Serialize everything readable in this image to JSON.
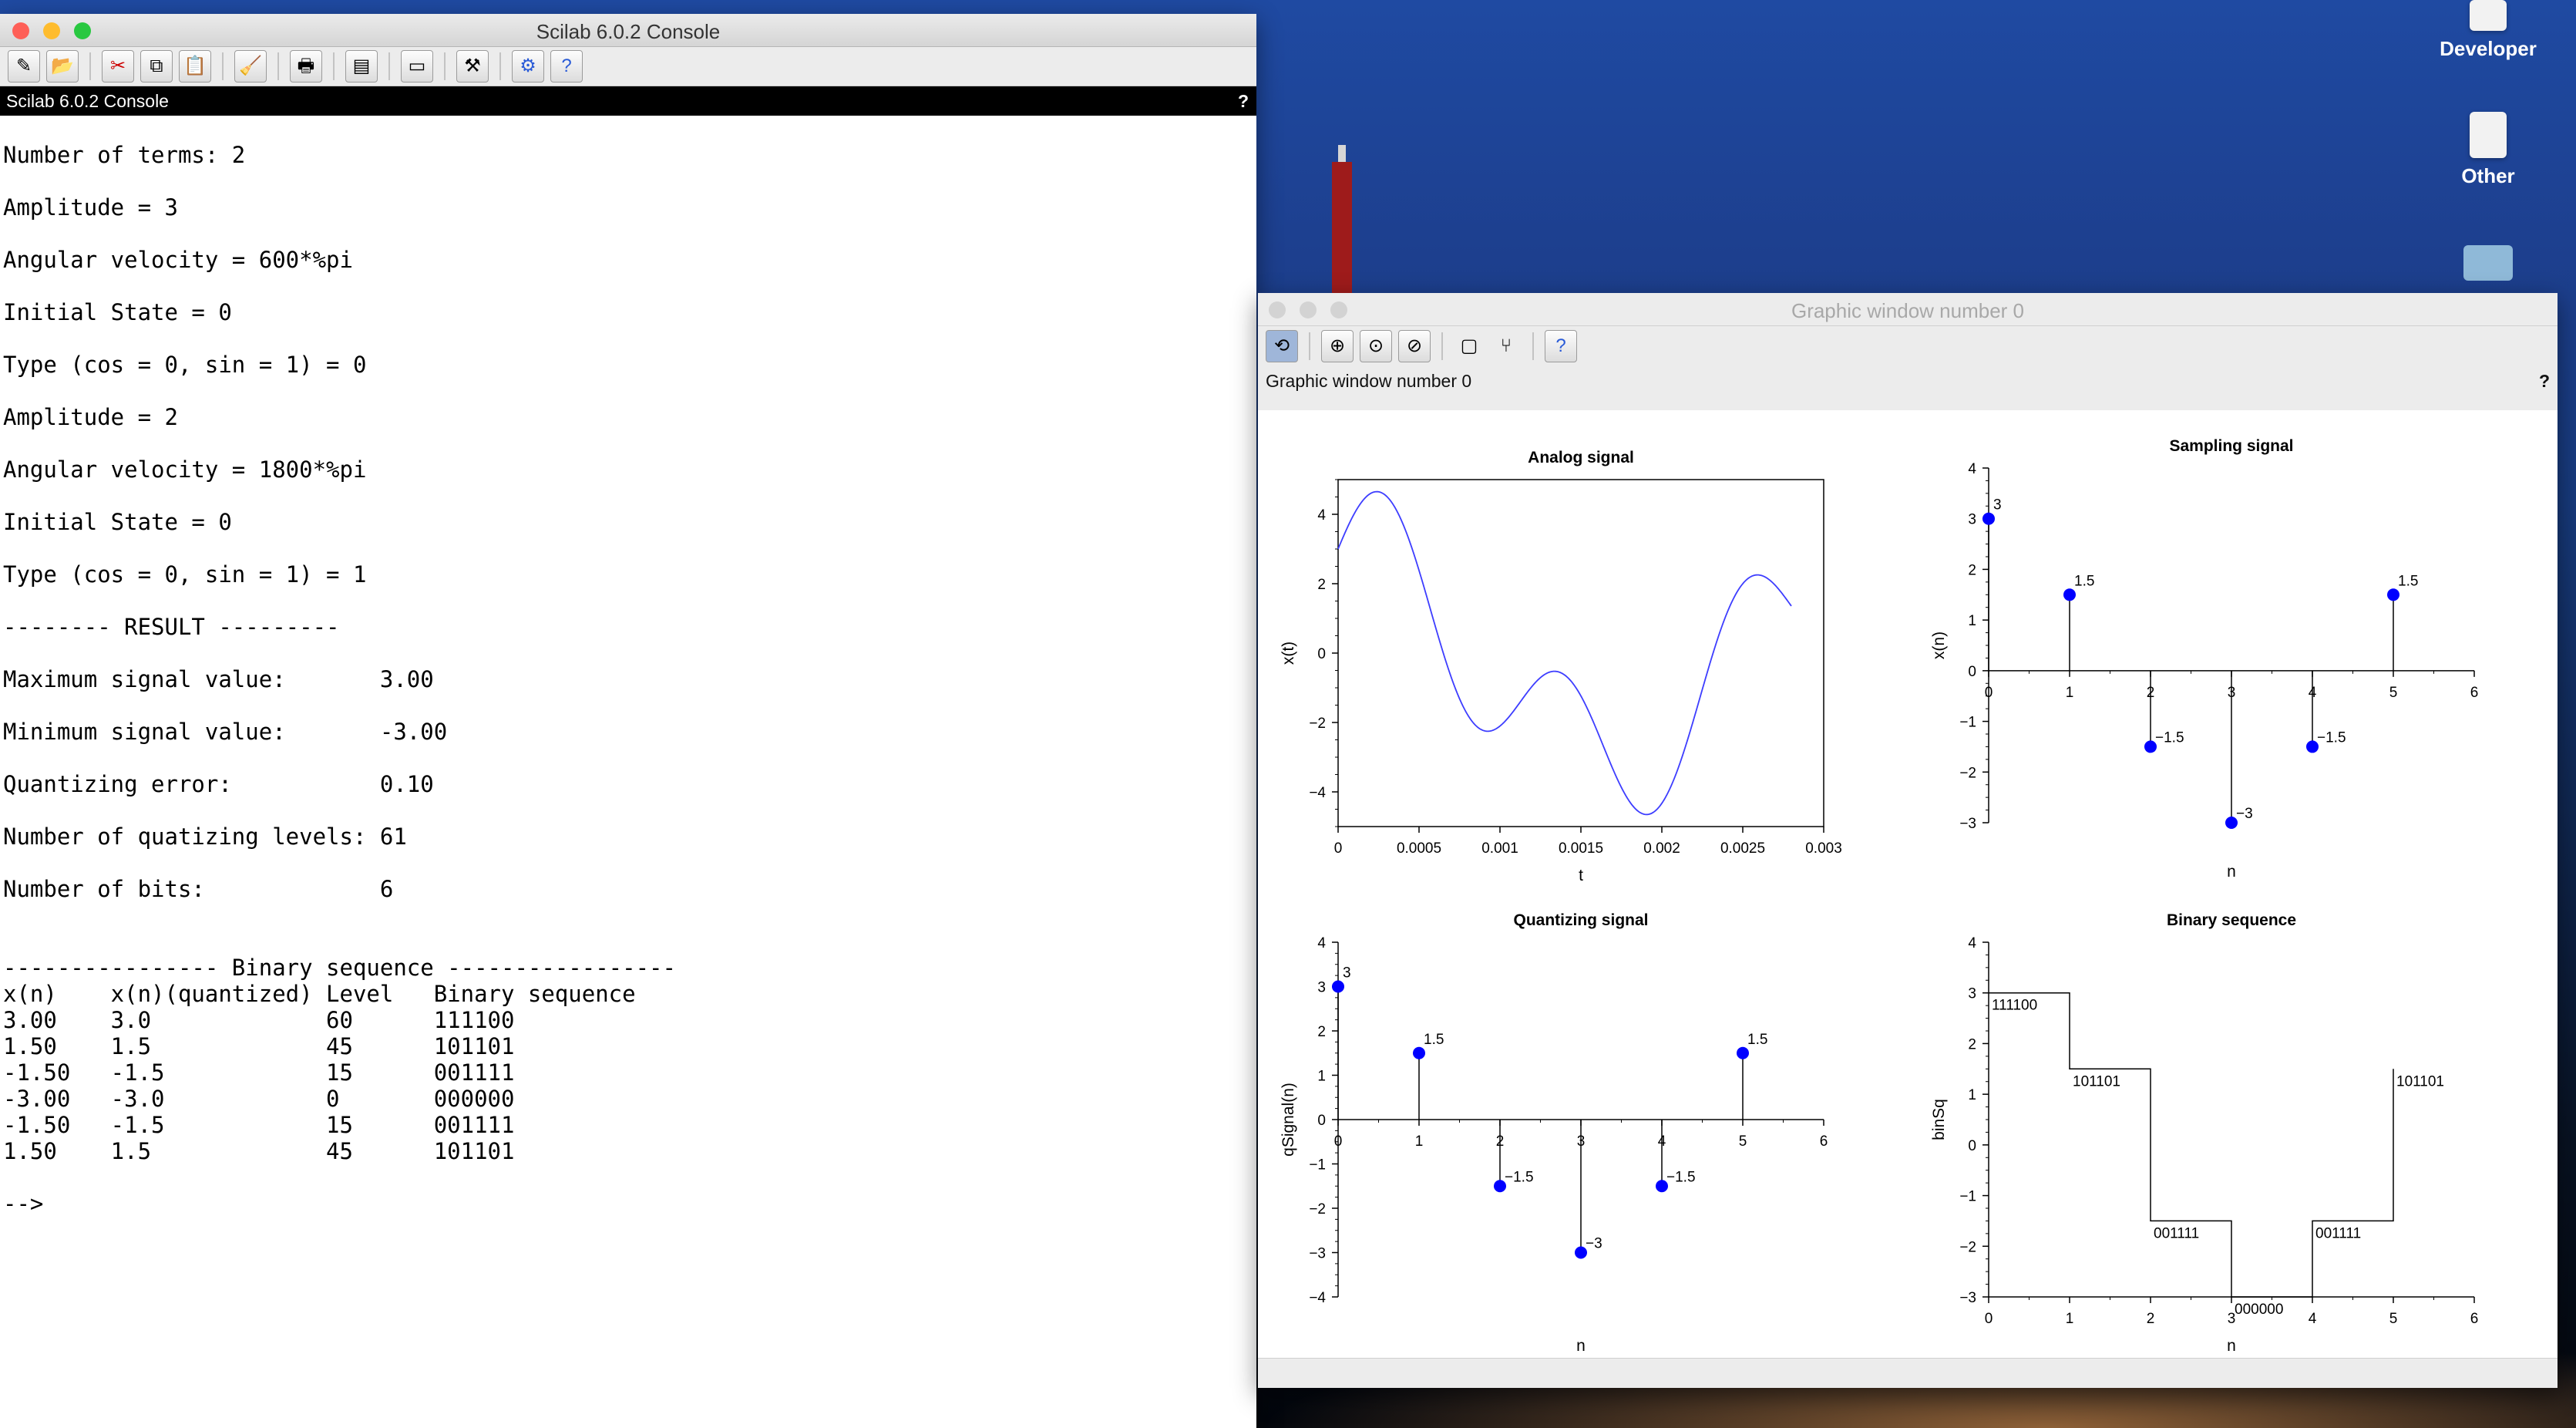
{
  "desktop": {
    "icons": [
      {
        "label": "Developer"
      },
      {
        "label": "Other"
      }
    ]
  },
  "console": {
    "window_title": "Scilab 6.0.2 Console",
    "panel_title": "Scilab 6.0.2 Console",
    "help_mark": "?",
    "lines": [
      "",
      "Number of terms: 2",
      "",
      "Amplitude = 3",
      "",
      "Angular velocity = 600*%pi",
      "",
      "Initial State = 0",
      "",
      "Type (cos = 0, sin = 1) = 0",
      "",
      "Amplitude = 2",
      "",
      "Angular velocity = 1800*%pi",
      "",
      "Initial State = 0",
      "",
      "Type (cos = 0, sin = 1) = 1",
      "",
      "-------- RESULT ---------",
      "",
      "Maximum signal value:       3.00",
      "",
      "Minimum signal value:       -3.00",
      "",
      "Quantizing error:           0.10",
      "",
      "Number of quatizing levels: 61",
      "",
      "Number of bits:             6",
      "",
      "",
      "---------------- Binary sequence -----------------",
      "x(n)    x(n)(quantized) Level   Binary sequence",
      "3.00    3.0             60      111100",
      "1.50    1.5             45      101101",
      "-1.50   -1.5            15      001111",
      "-3.00   -3.0            0       000000",
      "-1.50   -1.5            15      001111",
      "1.50    1.5             45      101101",
      "",
      "-->"
    ]
  },
  "graphic": {
    "window_title": "Graphic window number 0",
    "panel_title": "Graphic window number 0",
    "help_mark": "?"
  },
  "chart_data": [
    {
      "type": "line",
      "title": "Analog signal",
      "xlabel": "t",
      "ylabel": "x(t)",
      "xlim": [
        0,
        0.003
      ],
      "ylim": [
        -5,
        5
      ],
      "xticks": [
        "0",
        "0.0005",
        "0.001",
        "0.0015",
        "0.002",
        "0.0025",
        "0.003"
      ],
      "yticks": [
        "4",
        "2",
        "0",
        "−2",
        "−4"
      ],
      "series": [
        {
          "formula": "3*cos(600*pi*t) + 2*sin(1800*pi*t)",
          "t_range": [
            0,
            0.0028
          ]
        }
      ],
      "color": "#3d3dff"
    },
    {
      "type": "stem",
      "title": "Sampling signal",
      "xlabel": "n",
      "ylabel": "x(n)",
      "xlim": [
        0,
        6
      ],
      "ylim": [
        -3,
        4
      ],
      "xticks": [
        "0",
        "1",
        "2",
        "3",
        "4",
        "5",
        "6"
      ],
      "yticks": [
        "4",
        "3",
        "2",
        "1",
        "0",
        "−1",
        "−2",
        "−3"
      ],
      "x": [
        0,
        1,
        2,
        3,
        4,
        5
      ],
      "values": [
        3,
        1.5,
        -1.5,
        -3,
        -1.5,
        1.5
      ],
      "labels": [
        "3",
        "1.5",
        "−1.5",
        "−3",
        "−1.5",
        "1.5"
      ],
      "color": "#0000ff"
    },
    {
      "type": "stem",
      "title": "Quantizing signal",
      "xlabel": "n",
      "ylabel": "qSignal(n)",
      "xlim": [
        0,
        6
      ],
      "ylim": [
        -4,
        4
      ],
      "xticks": [
        "0",
        "1",
        "2",
        "3",
        "4",
        "5",
        "6"
      ],
      "yticks": [
        "4",
        "3",
        "2",
        "1",
        "0",
        "−1",
        "−2",
        "−3",
        "−4"
      ],
      "x": [
        0,
        1,
        2,
        3,
        4,
        5
      ],
      "values": [
        3,
        1.5,
        -1.5,
        -3,
        -1.5,
        1.5
      ],
      "labels": [
        "3",
        "1.5",
        "−1.5",
        "−3",
        "−1.5",
        "1.5"
      ],
      "color": "#0000ff"
    },
    {
      "type": "step",
      "title": "Binary sequence",
      "xlabel": "n",
      "ylabel": "binSq",
      "xlim": [
        0,
        6
      ],
      "ylim": [
        -3,
        4
      ],
      "xticks": [
        "0",
        "1",
        "2",
        "3",
        "4",
        "5",
        "6"
      ],
      "yticks": [
        "4",
        "3",
        "2",
        "1",
        "0",
        "−1",
        "−2",
        "−3"
      ],
      "x": [
        0,
        1,
        2,
        3,
        4,
        5
      ],
      "values": [
        3,
        1.5,
        -1.5,
        -3,
        -1.5,
        1.5
      ],
      "labels": [
        "111100",
        "101101",
        "001111",
        "000000",
        "001111",
        "101101"
      ],
      "color": "#000000"
    }
  ]
}
